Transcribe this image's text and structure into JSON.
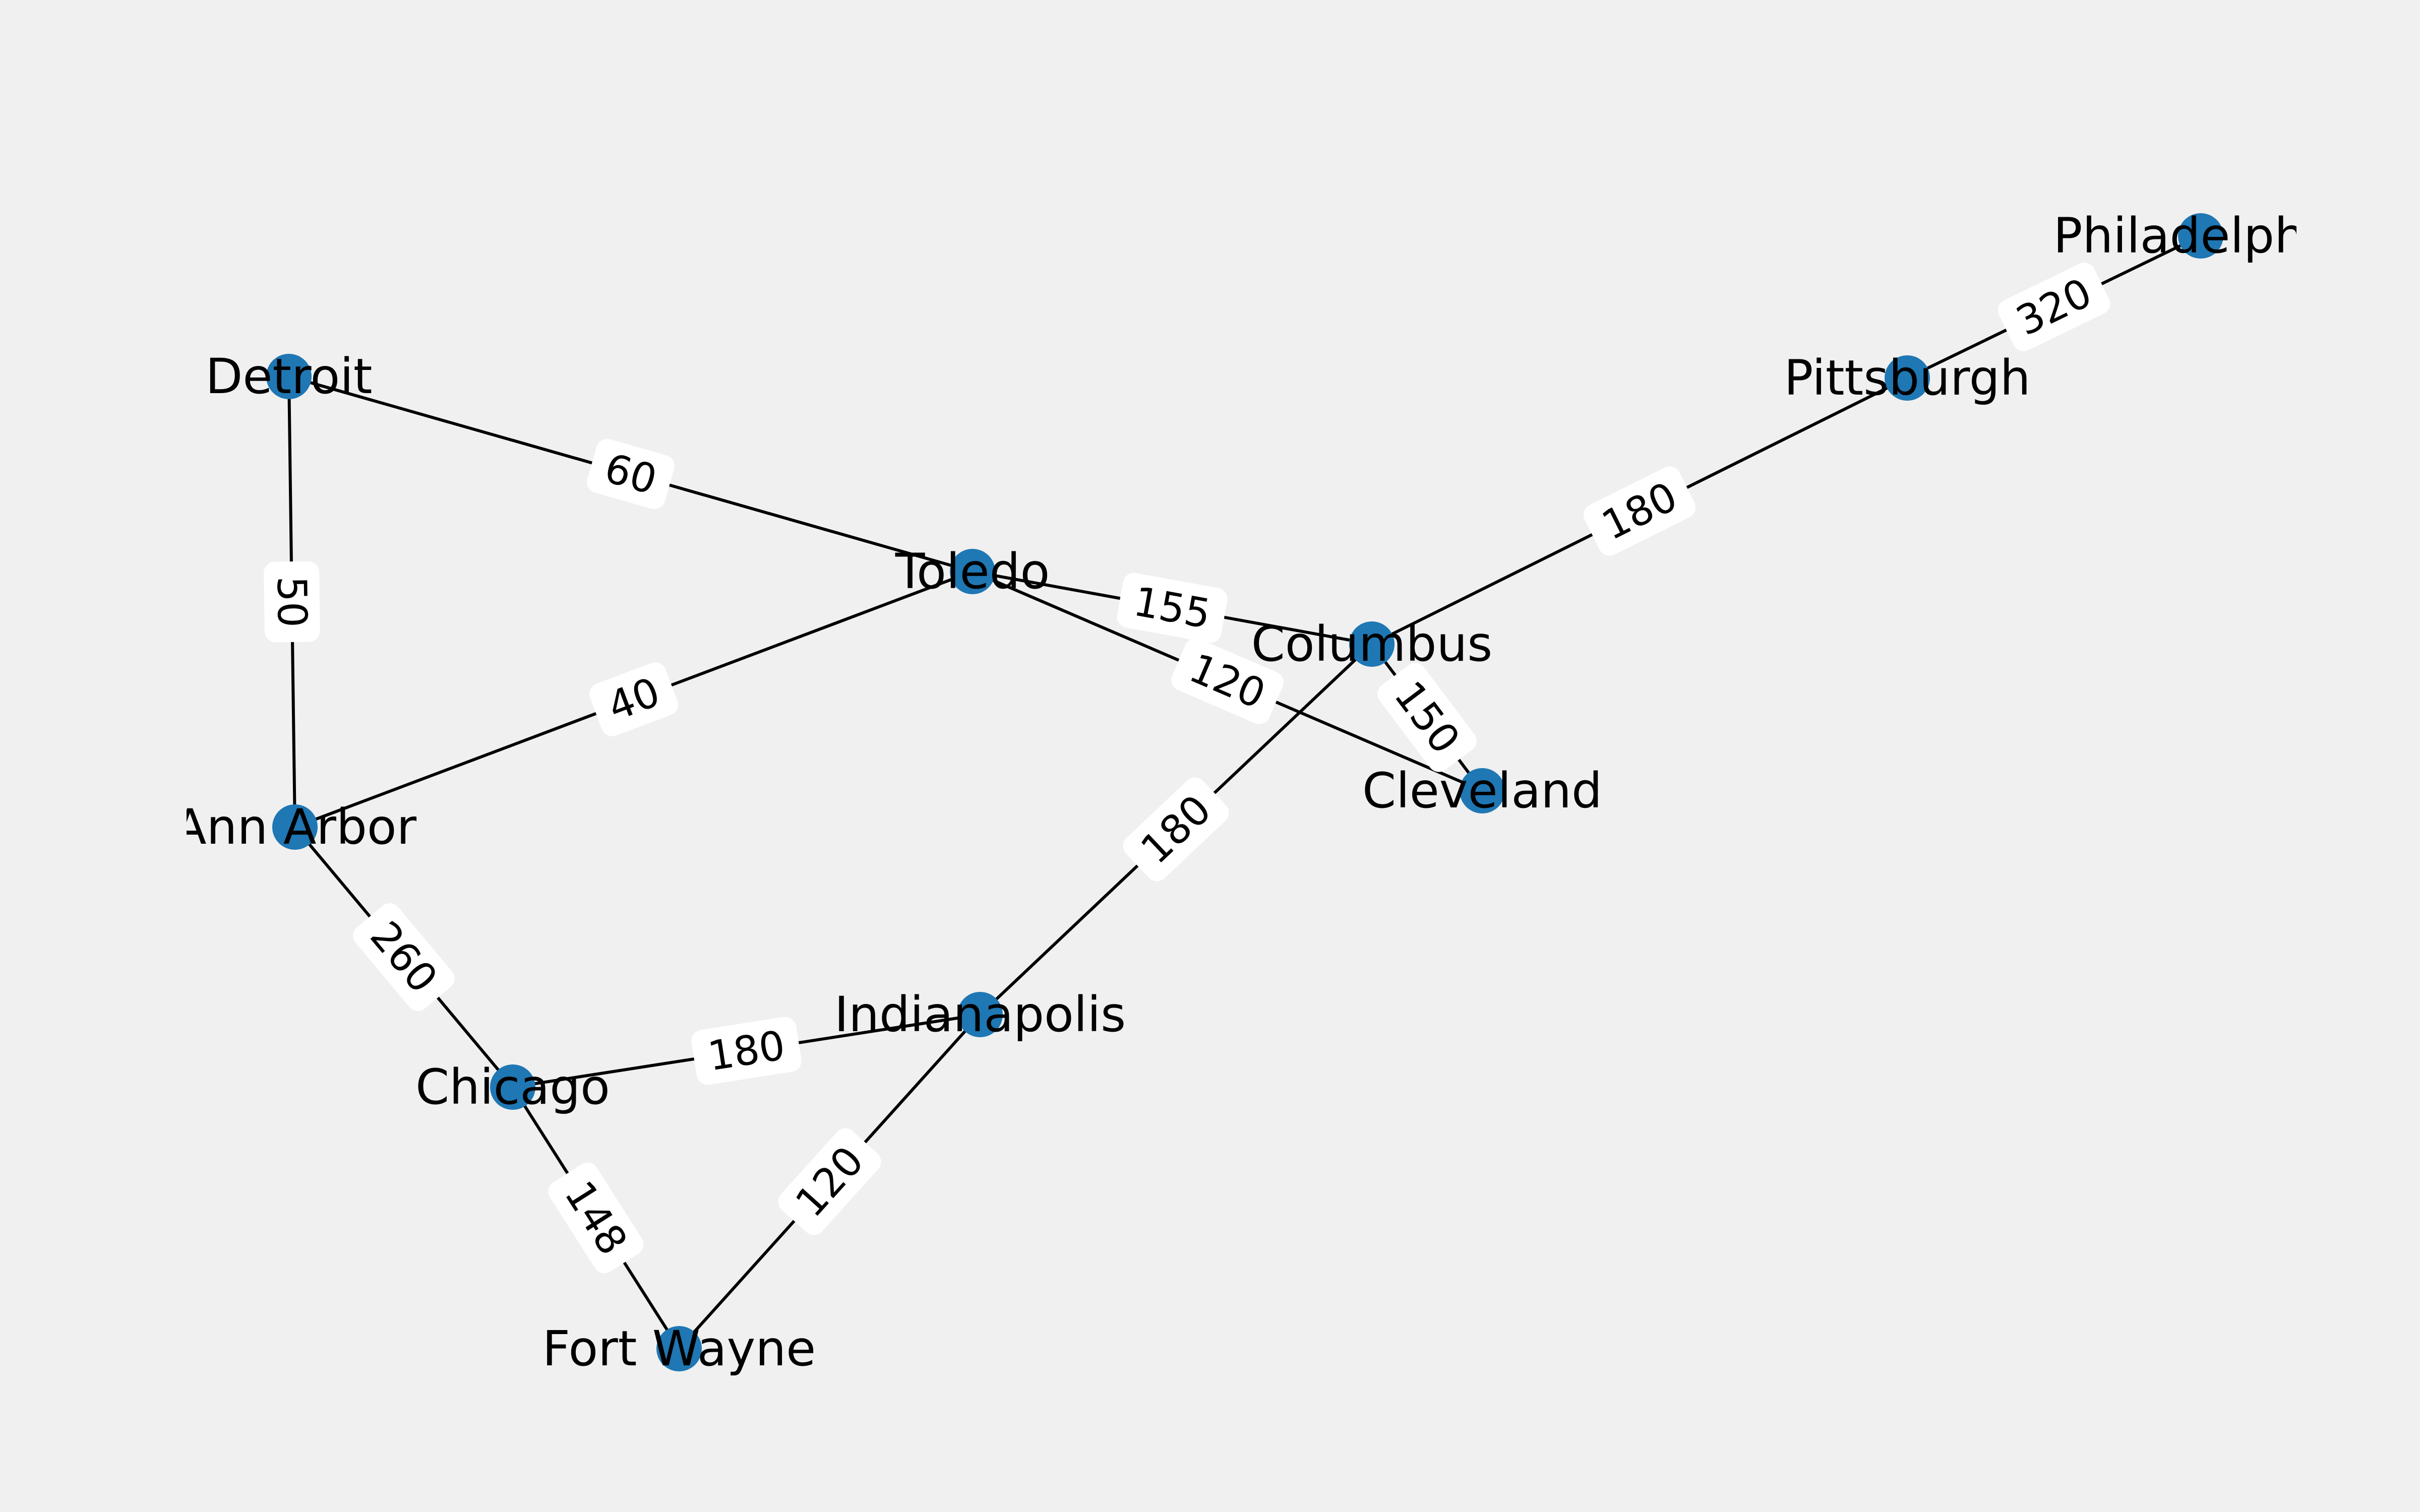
{
  "colors": {
    "background": "#f0f0f0",
    "node": "#1f77b4",
    "edge": "#000000",
    "label_box": "#ffffff"
  },
  "nodes": [
    {
      "id": "detroit",
      "label": "Detroit"
    },
    {
      "id": "ann_arbor",
      "label": "Ann Arbor"
    },
    {
      "id": "toledo",
      "label": "Toledo"
    },
    {
      "id": "columbus",
      "label": "Columbus"
    },
    {
      "id": "cleveland",
      "label": "Cleveland"
    },
    {
      "id": "pittsburgh",
      "label": "Pittsburgh"
    },
    {
      "id": "philadelphia",
      "label": "Philadelphia"
    },
    {
      "id": "indianapolis",
      "label": "Indianapolis"
    },
    {
      "id": "chicago",
      "label": "Chicago"
    },
    {
      "id": "fort_wayne",
      "label": "Fort Wayne"
    }
  ],
  "edges": [
    {
      "source": "detroit",
      "target": "toledo",
      "weight": "60"
    },
    {
      "source": "detroit",
      "target": "ann_arbor",
      "weight": "50"
    },
    {
      "source": "ann_arbor",
      "target": "toledo",
      "weight": "40"
    },
    {
      "source": "ann_arbor",
      "target": "chicago",
      "weight": "260"
    },
    {
      "source": "toledo",
      "target": "columbus",
      "weight": "155"
    },
    {
      "source": "toledo",
      "target": "cleveland",
      "weight": "120"
    },
    {
      "source": "columbus",
      "target": "cleveland",
      "weight": "150"
    },
    {
      "source": "columbus",
      "target": "pittsburgh",
      "weight": "180"
    },
    {
      "source": "columbus",
      "target": "indianapolis",
      "weight": "180"
    },
    {
      "source": "pittsburgh",
      "target": "philadelphia",
      "weight": "320"
    },
    {
      "source": "chicago",
      "target": "indianapolis",
      "weight": "180"
    },
    {
      "source": "chicago",
      "target": "fort_wayne",
      "weight": "148"
    },
    {
      "source": "indianapolis",
      "target": "fort_wayne",
      "weight": "120"
    }
  ]
}
